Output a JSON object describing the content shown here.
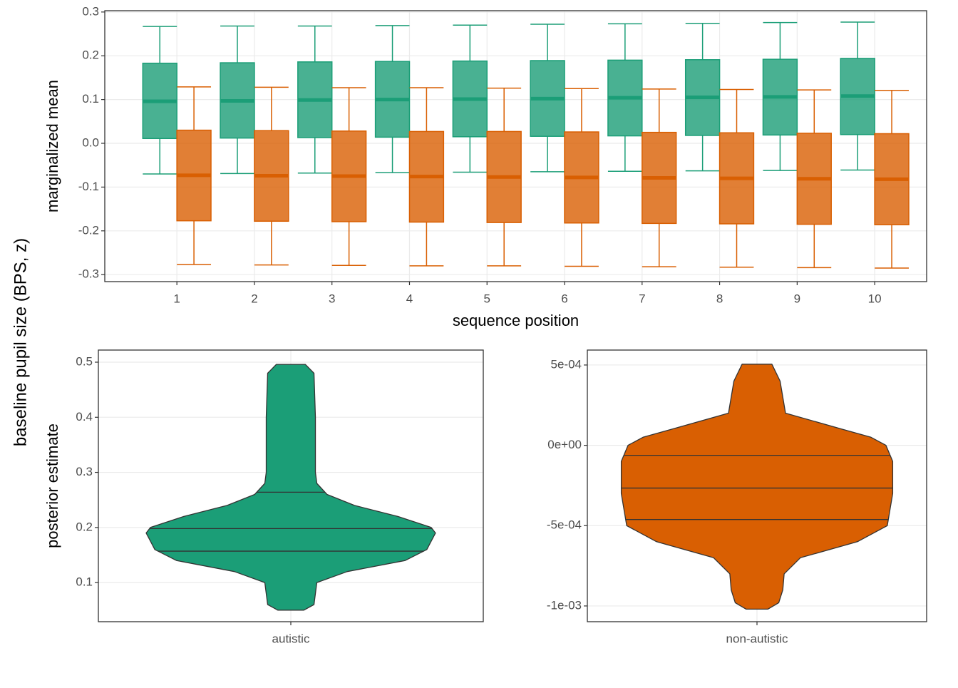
{
  "ylabel": "baseline pupil size (BPS, z)",
  "chart_data": [
    {
      "type": "box",
      "ylabel": "marginalized mean",
      "xlabel": "sequence position",
      "categories": [
        "1",
        "2",
        "3",
        "4",
        "5",
        "6",
        "7",
        "8",
        "9",
        "10"
      ],
      "ylim": [
        -0.316,
        0.303
      ],
      "yticks": [
        -0.3,
        -0.2,
        -0.1,
        {
          "value": 0,
          "label": "0.0"
        },
        0.1,
        0.2,
        0.3
      ],
      "grid": true,
      "series": [
        {
          "color": "#1b9e77",
          "whisker_high": [
            0.267,
            0.268,
            0.268,
            0.269,
            0.27,
            0.272,
            0.273,
            0.274,
            0.276,
            0.277
          ],
          "q3": [
            0.183,
            0.184,
            0.186,
            0.187,
            0.188,
            0.189,
            0.19,
            0.191,
            0.192,
            0.194
          ],
          "median": [
            0.096,
            0.097,
            0.099,
            0.1,
            0.101,
            0.102,
            0.104,
            0.105,
            0.106,
            0.108
          ],
          "q1": [
            0.011,
            0.012,
            0.013,
            0.014,
            0.015,
            0.016,
            0.017,
            0.018,
            0.019,
            0.02
          ],
          "whisker_low": [
            -0.07,
            -0.069,
            -0.068,
            -0.067,
            -0.066,
            -0.065,
            -0.064,
            -0.063,
            -0.062,
            -0.061
          ]
        },
        {
          "color": "#d95f02",
          "whisker_high": [
            0.129,
            0.128,
            0.127,
            0.127,
            0.126,
            0.125,
            0.124,
            0.123,
            0.122,
            0.121
          ],
          "q3": [
            0.03,
            0.029,
            0.028,
            0.027,
            0.027,
            0.026,
            0.025,
            0.024,
            0.023,
            0.022
          ],
          "median": [
            -0.073,
            -0.074,
            -0.075,
            -0.076,
            -0.077,
            -0.078,
            -0.079,
            -0.08,
            -0.081,
            -0.082
          ],
          "q1": [
            -0.177,
            -0.178,
            -0.179,
            -0.18,
            -0.181,
            -0.182,
            -0.183,
            -0.184,
            -0.185,
            -0.186
          ],
          "whisker_low": [
            -0.277,
            -0.278,
            -0.279,
            -0.28,
            -0.28,
            -0.281,
            -0.282,
            -0.283,
            -0.284,
            -0.285
          ]
        }
      ]
    },
    {
      "type": "violin",
      "ylabel": "posterior estimate",
      "categories": [
        "autistic"
      ],
      "ylim": [
        0.029,
        0.522
      ],
      "yticks": [
        0.1,
        0.2,
        0.3,
        0.4,
        0.5
      ],
      "grid": true,
      "series": [
        {
          "color": "#1b9e77",
          "y": [
            0.05,
            0.06,
            0.08,
            0.1,
            0.12,
            0.14,
            0.16,
            0.18,
            0.19,
            0.2,
            0.22,
            0.24,
            0.26,
            0.28,
            0.3,
            0.4,
            0.48,
            0.496
          ],
          "density": [
            0.09,
            0.16,
            0.17,
            0.18,
            0.39,
            0.79,
            0.94,
            0.98,
            1,
            0.97,
            0.74,
            0.44,
            0.25,
            0.18,
            0.17,
            0.17,
            0.16,
            0.1
          ],
          "quantiles": [
            0.157,
            0.198,
            0.264
          ]
        }
      ]
    },
    {
      "type": "violin",
      "categories": [
        "non-autistic"
      ],
      "ylim": [
        -0.001098,
        0.000593
      ],
      "yticks": [
        {
          "value": -0.001,
          "label": "-1e-03"
        },
        {
          "value": -0.0005,
          "label": "-5e-04"
        },
        {
          "value": 0,
          "label": "0e+00"
        },
        {
          "value": 0.0005,
          "label": "5e-04"
        }
      ],
      "grid": true,
      "series": [
        {
          "color": "#d95f02",
          "y": [
            -0.00102,
            -0.00098,
            -0.0009,
            -0.0008,
            -0.0007,
            -0.0006,
            -0.0005,
            -0.0003,
            -0.0001,
            0,
            5e-05,
            0.0001,
            0.0002,
            0.0004,
            0.000505
          ],
          "density": [
            0.08,
            0.16,
            0.19,
            0.2,
            0.32,
            0.74,
            0.96,
            1,
            1,
            0.95,
            0.84,
            0.63,
            0.21,
            0.17,
            0.11
          ],
          "quantiles": [
            -0.000462,
            -0.000266,
            -6.21e-05
          ]
        }
      ]
    }
  ]
}
